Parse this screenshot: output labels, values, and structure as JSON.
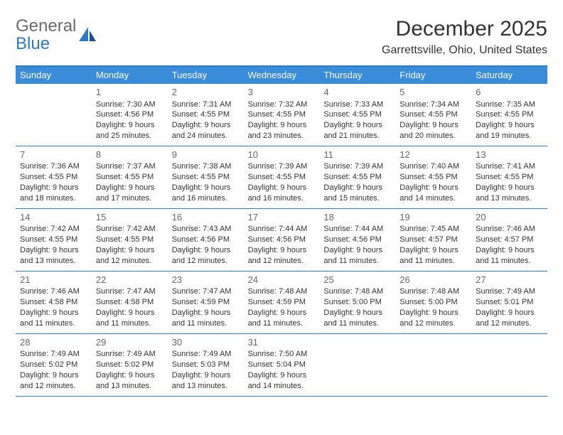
{
  "logo": {
    "line1": "General",
    "line2": "Blue"
  },
  "title": "December 2025",
  "location": "Garrettsville, Ohio, United States",
  "colors": {
    "header_bg": "#3a8bd8",
    "header_text": "#ffffff",
    "rule": "#2f78c3",
    "text": "#333333",
    "daynum": "#666666",
    "logo_gray": "#6a6a6a",
    "logo_blue": "#2f78c3"
  },
  "day_labels": [
    "Sunday",
    "Monday",
    "Tuesday",
    "Wednesday",
    "Thursday",
    "Friday",
    "Saturday"
  ],
  "weeks": [
    [
      null,
      {
        "n": "1",
        "sunrise": "7:30 AM",
        "sunset": "4:56 PM",
        "dl1": "Daylight: 9 hours",
        "dl2": "and 25 minutes."
      },
      {
        "n": "2",
        "sunrise": "7:31 AM",
        "sunset": "4:55 PM",
        "dl1": "Daylight: 9 hours",
        "dl2": "and 24 minutes."
      },
      {
        "n": "3",
        "sunrise": "7:32 AM",
        "sunset": "4:55 PM",
        "dl1": "Daylight: 9 hours",
        "dl2": "and 23 minutes."
      },
      {
        "n": "4",
        "sunrise": "7:33 AM",
        "sunset": "4:55 PM",
        "dl1": "Daylight: 9 hours",
        "dl2": "and 21 minutes."
      },
      {
        "n": "5",
        "sunrise": "7:34 AM",
        "sunset": "4:55 PM",
        "dl1": "Daylight: 9 hours",
        "dl2": "and 20 minutes."
      },
      {
        "n": "6",
        "sunrise": "7:35 AM",
        "sunset": "4:55 PM",
        "dl1": "Daylight: 9 hours",
        "dl2": "and 19 minutes."
      }
    ],
    [
      {
        "n": "7",
        "sunrise": "7:36 AM",
        "sunset": "4:55 PM",
        "dl1": "Daylight: 9 hours",
        "dl2": "and 18 minutes."
      },
      {
        "n": "8",
        "sunrise": "7:37 AM",
        "sunset": "4:55 PM",
        "dl1": "Daylight: 9 hours",
        "dl2": "and 17 minutes."
      },
      {
        "n": "9",
        "sunrise": "7:38 AM",
        "sunset": "4:55 PM",
        "dl1": "Daylight: 9 hours",
        "dl2": "and 16 minutes."
      },
      {
        "n": "10",
        "sunrise": "7:39 AM",
        "sunset": "4:55 PM",
        "dl1": "Daylight: 9 hours",
        "dl2": "and 16 minutes."
      },
      {
        "n": "11",
        "sunrise": "7:39 AM",
        "sunset": "4:55 PM",
        "dl1": "Daylight: 9 hours",
        "dl2": "and 15 minutes."
      },
      {
        "n": "12",
        "sunrise": "7:40 AM",
        "sunset": "4:55 PM",
        "dl1": "Daylight: 9 hours",
        "dl2": "and 14 minutes."
      },
      {
        "n": "13",
        "sunrise": "7:41 AM",
        "sunset": "4:55 PM",
        "dl1": "Daylight: 9 hours",
        "dl2": "and 13 minutes."
      }
    ],
    [
      {
        "n": "14",
        "sunrise": "7:42 AM",
        "sunset": "4:55 PM",
        "dl1": "Daylight: 9 hours",
        "dl2": "and 13 minutes."
      },
      {
        "n": "15",
        "sunrise": "7:42 AM",
        "sunset": "4:55 PM",
        "dl1": "Daylight: 9 hours",
        "dl2": "and 12 minutes."
      },
      {
        "n": "16",
        "sunrise": "7:43 AM",
        "sunset": "4:56 PM",
        "dl1": "Daylight: 9 hours",
        "dl2": "and 12 minutes."
      },
      {
        "n": "17",
        "sunrise": "7:44 AM",
        "sunset": "4:56 PM",
        "dl1": "Daylight: 9 hours",
        "dl2": "and 12 minutes."
      },
      {
        "n": "18",
        "sunrise": "7:44 AM",
        "sunset": "4:56 PM",
        "dl1": "Daylight: 9 hours",
        "dl2": "and 11 minutes."
      },
      {
        "n": "19",
        "sunrise": "7:45 AM",
        "sunset": "4:57 PM",
        "dl1": "Daylight: 9 hours",
        "dl2": "and 11 minutes."
      },
      {
        "n": "20",
        "sunrise": "7:46 AM",
        "sunset": "4:57 PM",
        "dl1": "Daylight: 9 hours",
        "dl2": "and 11 minutes."
      }
    ],
    [
      {
        "n": "21",
        "sunrise": "7:46 AM",
        "sunset": "4:58 PM",
        "dl1": "Daylight: 9 hours",
        "dl2": "and 11 minutes."
      },
      {
        "n": "22",
        "sunrise": "7:47 AM",
        "sunset": "4:58 PM",
        "dl1": "Daylight: 9 hours",
        "dl2": "and 11 minutes."
      },
      {
        "n": "23",
        "sunrise": "7:47 AM",
        "sunset": "4:59 PM",
        "dl1": "Daylight: 9 hours",
        "dl2": "and 11 minutes."
      },
      {
        "n": "24",
        "sunrise": "7:48 AM",
        "sunset": "4:59 PM",
        "dl1": "Daylight: 9 hours",
        "dl2": "and 11 minutes."
      },
      {
        "n": "25",
        "sunrise": "7:48 AM",
        "sunset": "5:00 PM",
        "dl1": "Daylight: 9 hours",
        "dl2": "and 11 minutes."
      },
      {
        "n": "26",
        "sunrise": "7:48 AM",
        "sunset": "5:00 PM",
        "dl1": "Daylight: 9 hours",
        "dl2": "and 12 minutes."
      },
      {
        "n": "27",
        "sunrise": "7:49 AM",
        "sunset": "5:01 PM",
        "dl1": "Daylight: 9 hours",
        "dl2": "and 12 minutes."
      }
    ],
    [
      {
        "n": "28",
        "sunrise": "7:49 AM",
        "sunset": "5:02 PM",
        "dl1": "Daylight: 9 hours",
        "dl2": "and 12 minutes."
      },
      {
        "n": "29",
        "sunrise": "7:49 AM",
        "sunset": "5:02 PM",
        "dl1": "Daylight: 9 hours",
        "dl2": "and 13 minutes."
      },
      {
        "n": "30",
        "sunrise": "7:49 AM",
        "sunset": "5:03 PM",
        "dl1": "Daylight: 9 hours",
        "dl2": "and 13 minutes."
      },
      {
        "n": "31",
        "sunrise": "7:50 AM",
        "sunset": "5:04 PM",
        "dl1": "Daylight: 9 hours",
        "dl2": "and 14 minutes."
      },
      null,
      null,
      null
    ]
  ]
}
